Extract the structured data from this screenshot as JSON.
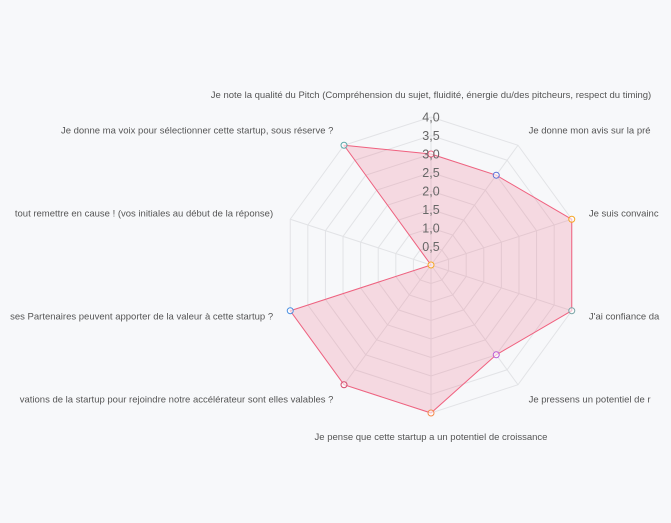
{
  "chart_data": {
    "type": "radar",
    "axes": [
      "Je note la qualité du Pitch (Compréhension du sujet, fluidité, énergie du/des pitcheurs, respect du timing)",
      "Je donne mon avis sur la pré",
      "Je suis convainc",
      "J'ai confiance da",
      "Je pressens un potentiel de r",
      "Je pense que cette startup a un potentiel de croissance",
      "vations de la startup pour rejoindre notre accélérateur sont elles valables ?",
      "ses Partenaires peuvent apporter de la valeur à cette startup ?",
      "tout remettre en cause ! (vos initiales au début de la réponse)",
      "Je donne ma voix pour sélectionner cette startup, sous réserve ?"
    ],
    "ticks": [
      "0,5",
      "1,0",
      "1,5",
      "2,0",
      "2,5",
      "3,0",
      "3,5",
      "4,0"
    ],
    "rmin": 0,
    "rmax": 4,
    "series": [
      {
        "values": [
          3,
          3,
          4,
          4,
          3,
          4,
          4,
          4,
          0,
          4
        ],
        "line_color": "#f0617f",
        "fill_color": "rgba(240,97,127,0.2)",
        "point_colors": [
          "#f0617f",
          "#5b6fd6",
          "#f5a623",
          "#7ba6a8",
          "#b85ad6",
          "#f58a4c",
          "#d44a6b",
          "#4a90e2",
          "#f5a623",
          "#5aa6a8"
        ]
      }
    ],
    "grid": true
  },
  "grid_color": "#e2e3e6"
}
